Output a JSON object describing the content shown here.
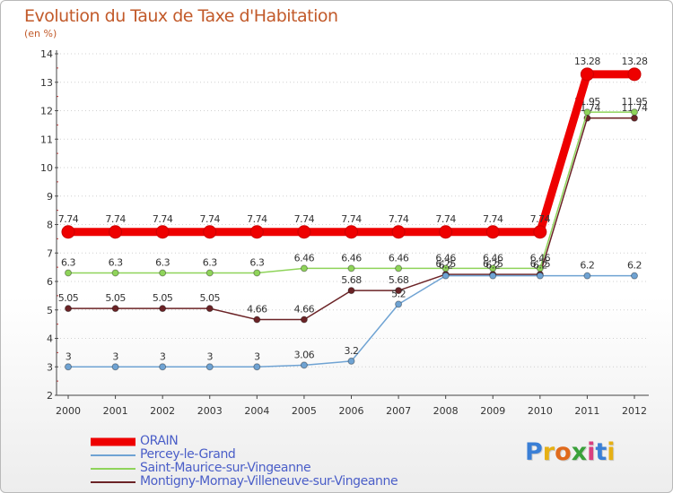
{
  "title": "Evolution du Taux de Taxe d'Habitation",
  "subtitle": "(en %)",
  "logo": {
    "letters": [
      "P",
      "r",
      "o",
      "x",
      "i",
      "t",
      "i"
    ],
    "colors": [
      "#3a7fd6",
      "#e6b014",
      "#e06a1c",
      "#3aa13a",
      "#d93f7f",
      "#3a7fd6",
      "#e6b014"
    ]
  },
  "chart_data": {
    "type": "line",
    "xlabel": "",
    "ylabel": "",
    "x": [
      "2000",
      "2001",
      "2002",
      "2003",
      "2004",
      "2005",
      "2006",
      "2007",
      "2008",
      "2009",
      "2010",
      "2011",
      "2012"
    ],
    "ylim": [
      2,
      14
    ],
    "yticks": [
      "2",
      "3",
      "4",
      "5",
      "6",
      "7",
      "8",
      "9",
      "10",
      "11",
      "12",
      "13",
      "14"
    ],
    "grid": "horizontal dotted",
    "legend_position": "bottom-left",
    "series": [
      {
        "name": "Montigny-Mornay-Villeneuve-sur-Vingeanne",
        "color": "#6b2326",
        "values": [
          5.05,
          5.05,
          5.05,
          5.05,
          4.66,
          4.66,
          5.68,
          5.68,
          6.25,
          6.25,
          6.25,
          11.74,
          11.74
        ],
        "labels": [
          "5.05",
          "5.05",
          "5.05",
          "5.05",
          "4.66",
          "4.66",
          "5.68",
          "5.68",
          "6.25",
          "6.25",
          "6.25",
          "11.74",
          "11.74"
        ]
      },
      {
        "name": "Saint-Maurice-sur-Vingeanne",
        "color": "#8fd45a",
        "values": [
          6.3,
          6.3,
          6.3,
          6.3,
          6.3,
          6.46,
          6.46,
          6.46,
          6.46,
          6.46,
          6.46,
          11.95,
          11.95
        ],
        "labels": [
          "6.3",
          "6.3",
          "6.3",
          "6.3",
          "6.3",
          "6.46",
          "6.46",
          "6.46",
          "6.46",
          "6.46",
          "6.46",
          "11.95",
          "11.95"
        ]
      },
      {
        "name": "Percey-le-Grand",
        "color": "#6fa3d3",
        "values": [
          3,
          3,
          3,
          3,
          3,
          3.06,
          3.2,
          5.2,
          6.2,
          6.2,
          6.2,
          6.2,
          6.2
        ],
        "labels": [
          "3",
          "3",
          "3",
          "3",
          "3",
          "3.06",
          "3.2",
          "5.2",
          "6.2",
          "6.2",
          "6.2",
          "6.2",
          "6.2"
        ]
      },
      {
        "name": "ORAIN",
        "color": "#ee0000",
        "values": [
          7.74,
          7.74,
          7.74,
          7.74,
          7.74,
          7.74,
          7.74,
          7.74,
          7.74,
          7.74,
          7.74,
          13.28,
          13.28
        ],
        "labels": [
          "7.74",
          "7.74",
          "7.74",
          "7.74",
          "7.74",
          "7.74",
          "7.74",
          "7.74",
          "7.74",
          "7.74",
          "7.74",
          "13.28",
          "13.28"
        ]
      }
    ],
    "legend_order": [
      "ORAIN",
      "Percey-le-Grand",
      "Saint-Maurice-sur-Vingeanne",
      "Montigny-Mornay-Villeneuve-sur-Vingeanne"
    ]
  }
}
